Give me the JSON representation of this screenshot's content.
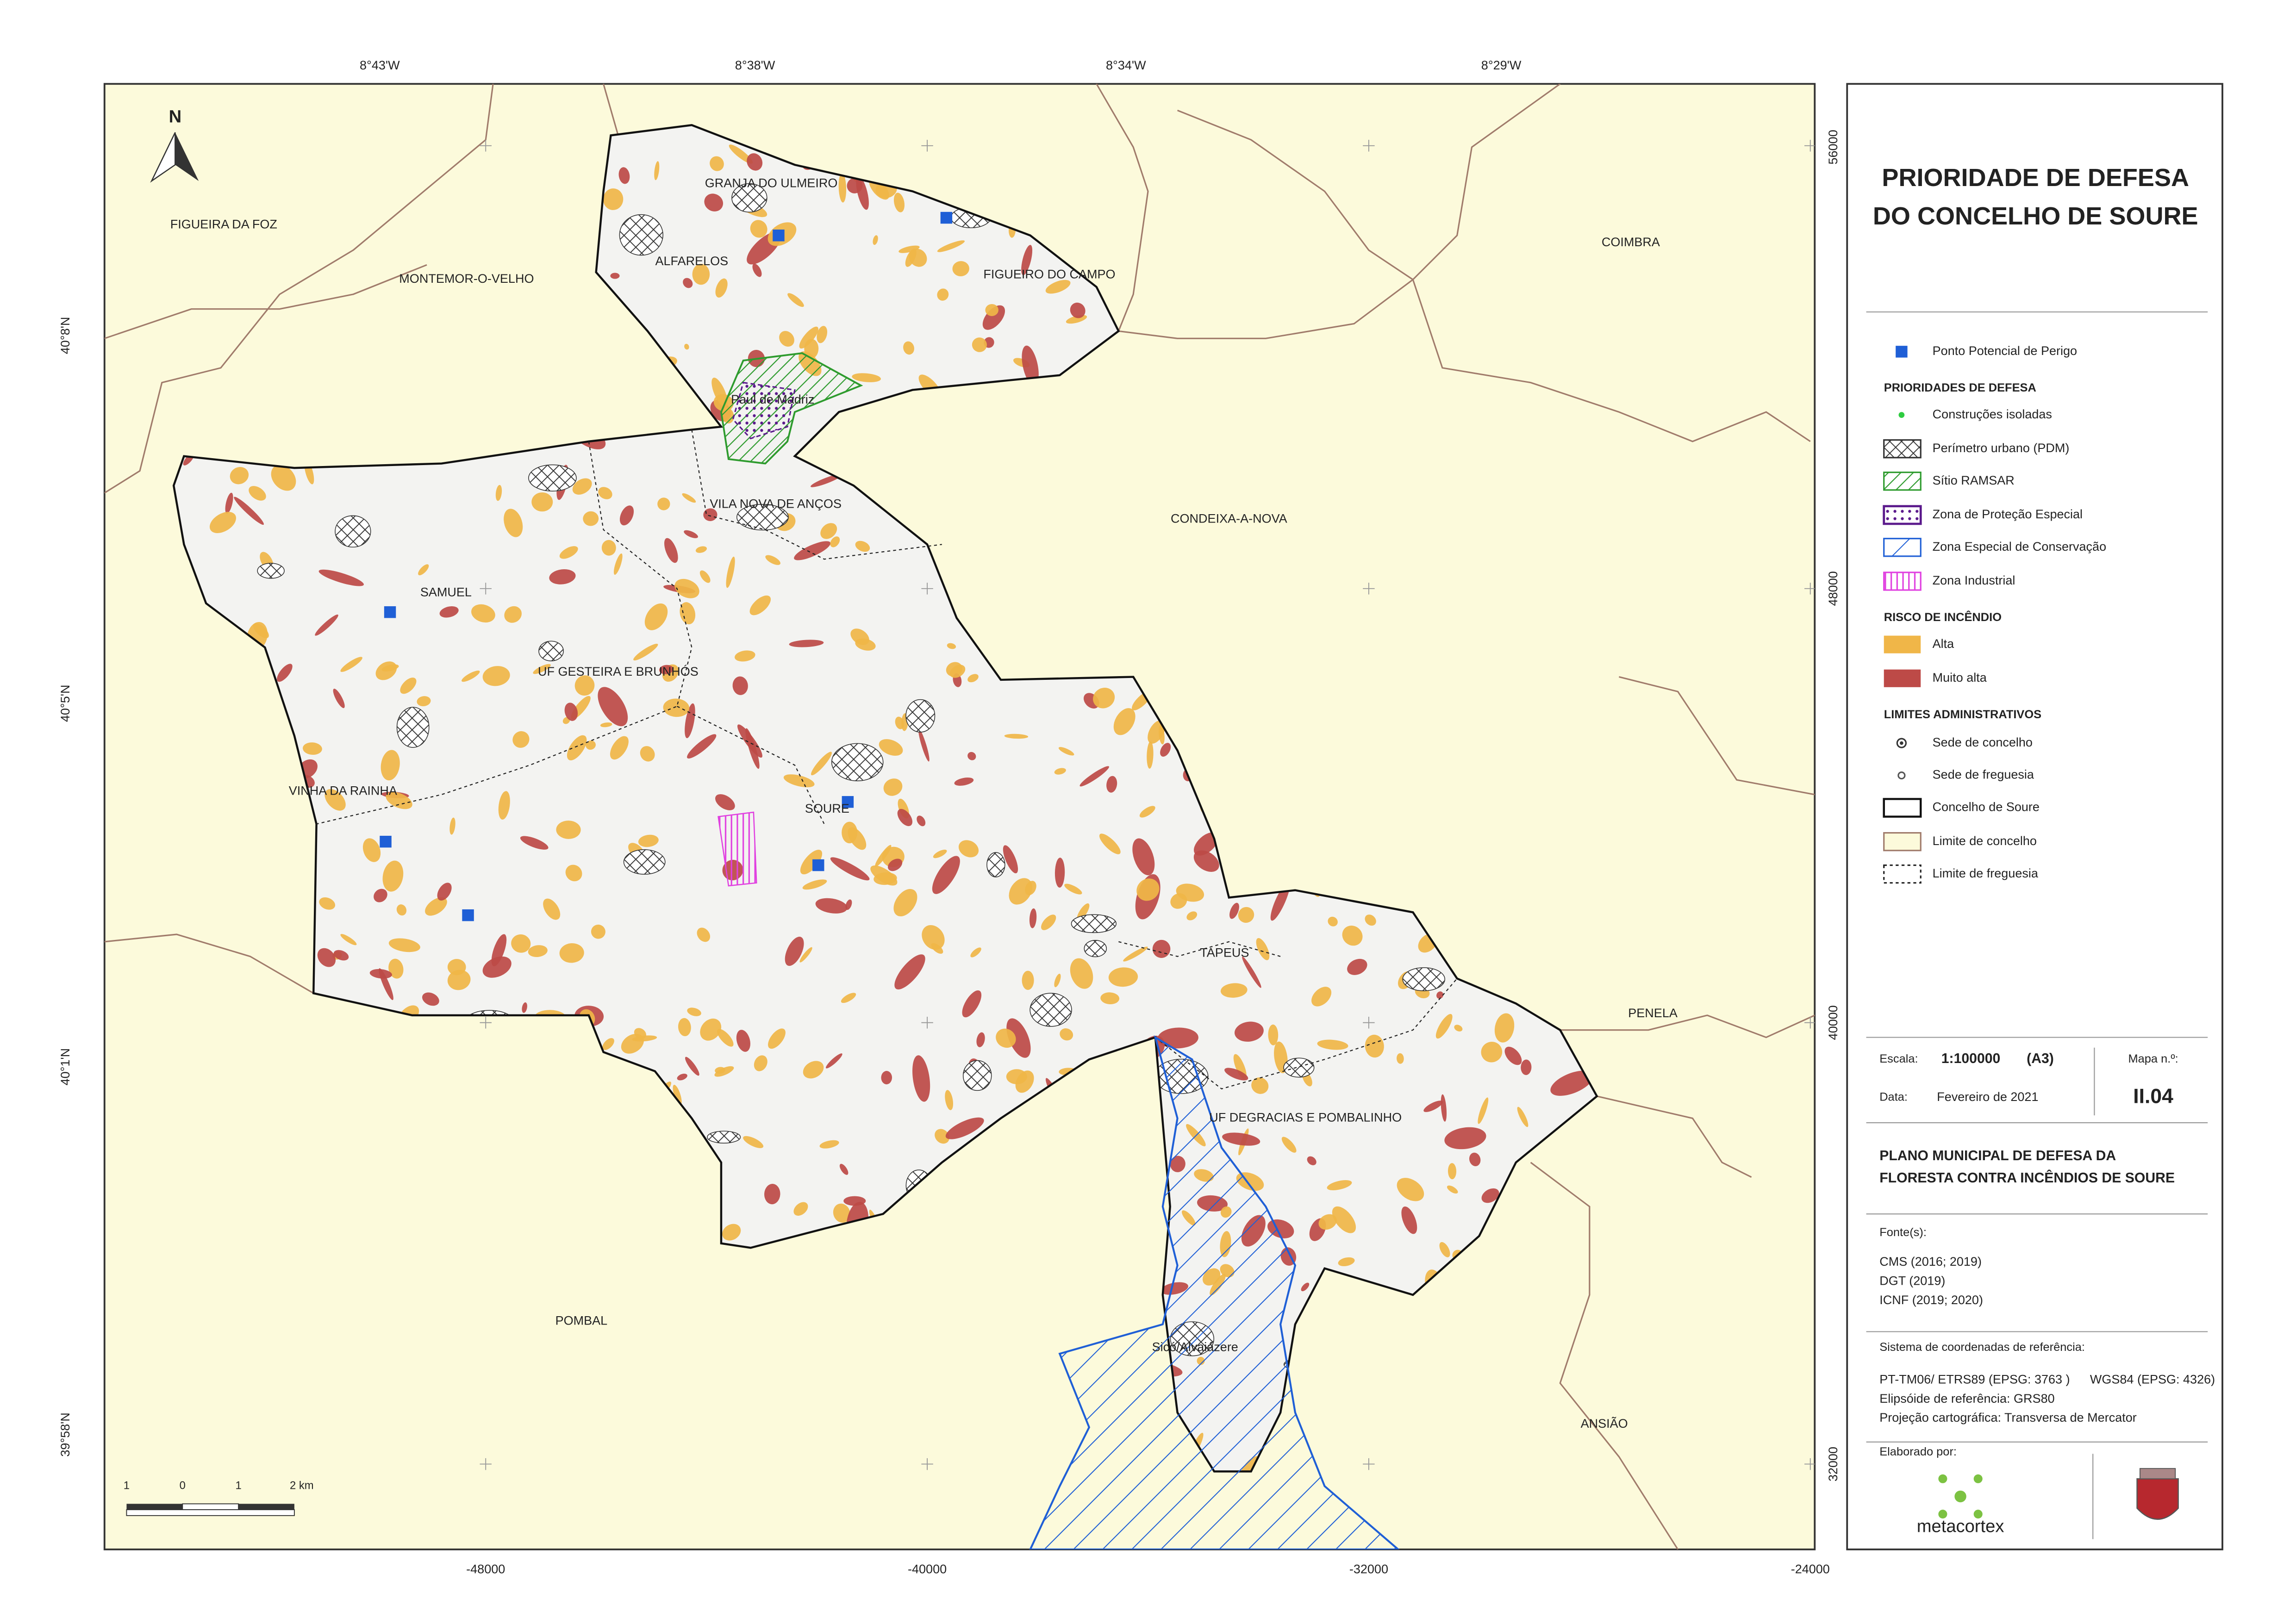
{
  "map": {
    "north_arrow": "N",
    "graticule_top": [
      "8°43'W",
      "8°38'W",
      "8°34'W",
      "8°29'W"
    ],
    "graticule_left": [
      "40°8'N",
      "40°5'N",
      "40°1'N",
      "39°58'N"
    ],
    "grid_bottom": [
      "-48000",
      "-40000",
      "-32000",
      "-24000"
    ],
    "grid_right": [
      "56000",
      "48000",
      "40000",
      "32000"
    ],
    "places": [
      "FIGUEIRA DA FOZ",
      "MONTEMOR-O-VELHO",
      "COIMBRA",
      "CONDEIXA-A-NOVA",
      "PENELA",
      "ANSIÃO",
      "POMBAL",
      "GRANJA DO ULMEIRO",
      "ALFARELOS",
      "FIGUEIRO DO CAMPO",
      "VILA NOVA DE ANÇOS",
      "SAMUEL",
      "UF GESTEIRA E BRUNHÓS",
      "VINHA DA RAINHA",
      "SOURE",
      "TAPEUS",
      "UF DEGRACIAS E POMBALINHO"
    ],
    "protected_areas": [
      "Paul de Madriz",
      "Sicó/Alvaiázere"
    ],
    "scale_bar": [
      "1",
      "0",
      "1",
      "2 km"
    ]
  },
  "legend": {
    "point_item": "Ponto Potencial de Perigo",
    "sections": [
      {
        "title": "PRIORIDADES DE DEFESA",
        "items": [
          "Construções isoladas",
          "Perímetro urbano (PDM)",
          "Sítio RAMSAR",
          "Zona de Proteção Especial",
          "Zona Especial de Conservação",
          "Zona Industrial"
        ]
      },
      {
        "title": "RISCO DE INCÊNDIO",
        "items": [
          "Alta",
          "Muito alta"
        ]
      },
      {
        "title": "LIMITES ADMINISTRATIVOS",
        "items": [
          "Sede de concelho",
          "Sede de freguesia",
          "Concelho de Soure",
          "Limite de concelho",
          "Limite de freguesia"
        ]
      }
    ]
  },
  "title_block": {
    "title_lines": [
      "PRIORIDADE DE DEFESA",
      "DO CONCELHO DE SOURE"
    ],
    "scale_label": "Escala:",
    "scale": "1:100000",
    "paper": "(A3)",
    "map_no_label": "Mapa n.º:",
    "date_label": "Data:",
    "date": "Fevereiro de 2021",
    "map_no": "II.04",
    "plan_lines": [
      "PLANO MUNICIPAL DE DEFESA DA",
      "FLORESTA CONTRA INCÊNDIOS DE SOURE"
    ],
    "sources_label": "Fonte(s):",
    "sources": [
      "CMS (2016; 2019)",
      "DGT (2019)",
      "ICNF (2019; 2020)"
    ],
    "crs_label": "Sistema de coordenadas de referência:",
    "crs": "PT-TM06/ ETRS89 (EPSG: 3763 )",
    "crs_geo": "WGS84 (EPSG: 4326)",
    "ellipsoid": "Elipsóide de referência: GRS80",
    "projection": "Projeção cartográfica: Transversa de Mercator",
    "made_by_label": "Elaborado por:",
    "company": "metacortex"
  }
}
